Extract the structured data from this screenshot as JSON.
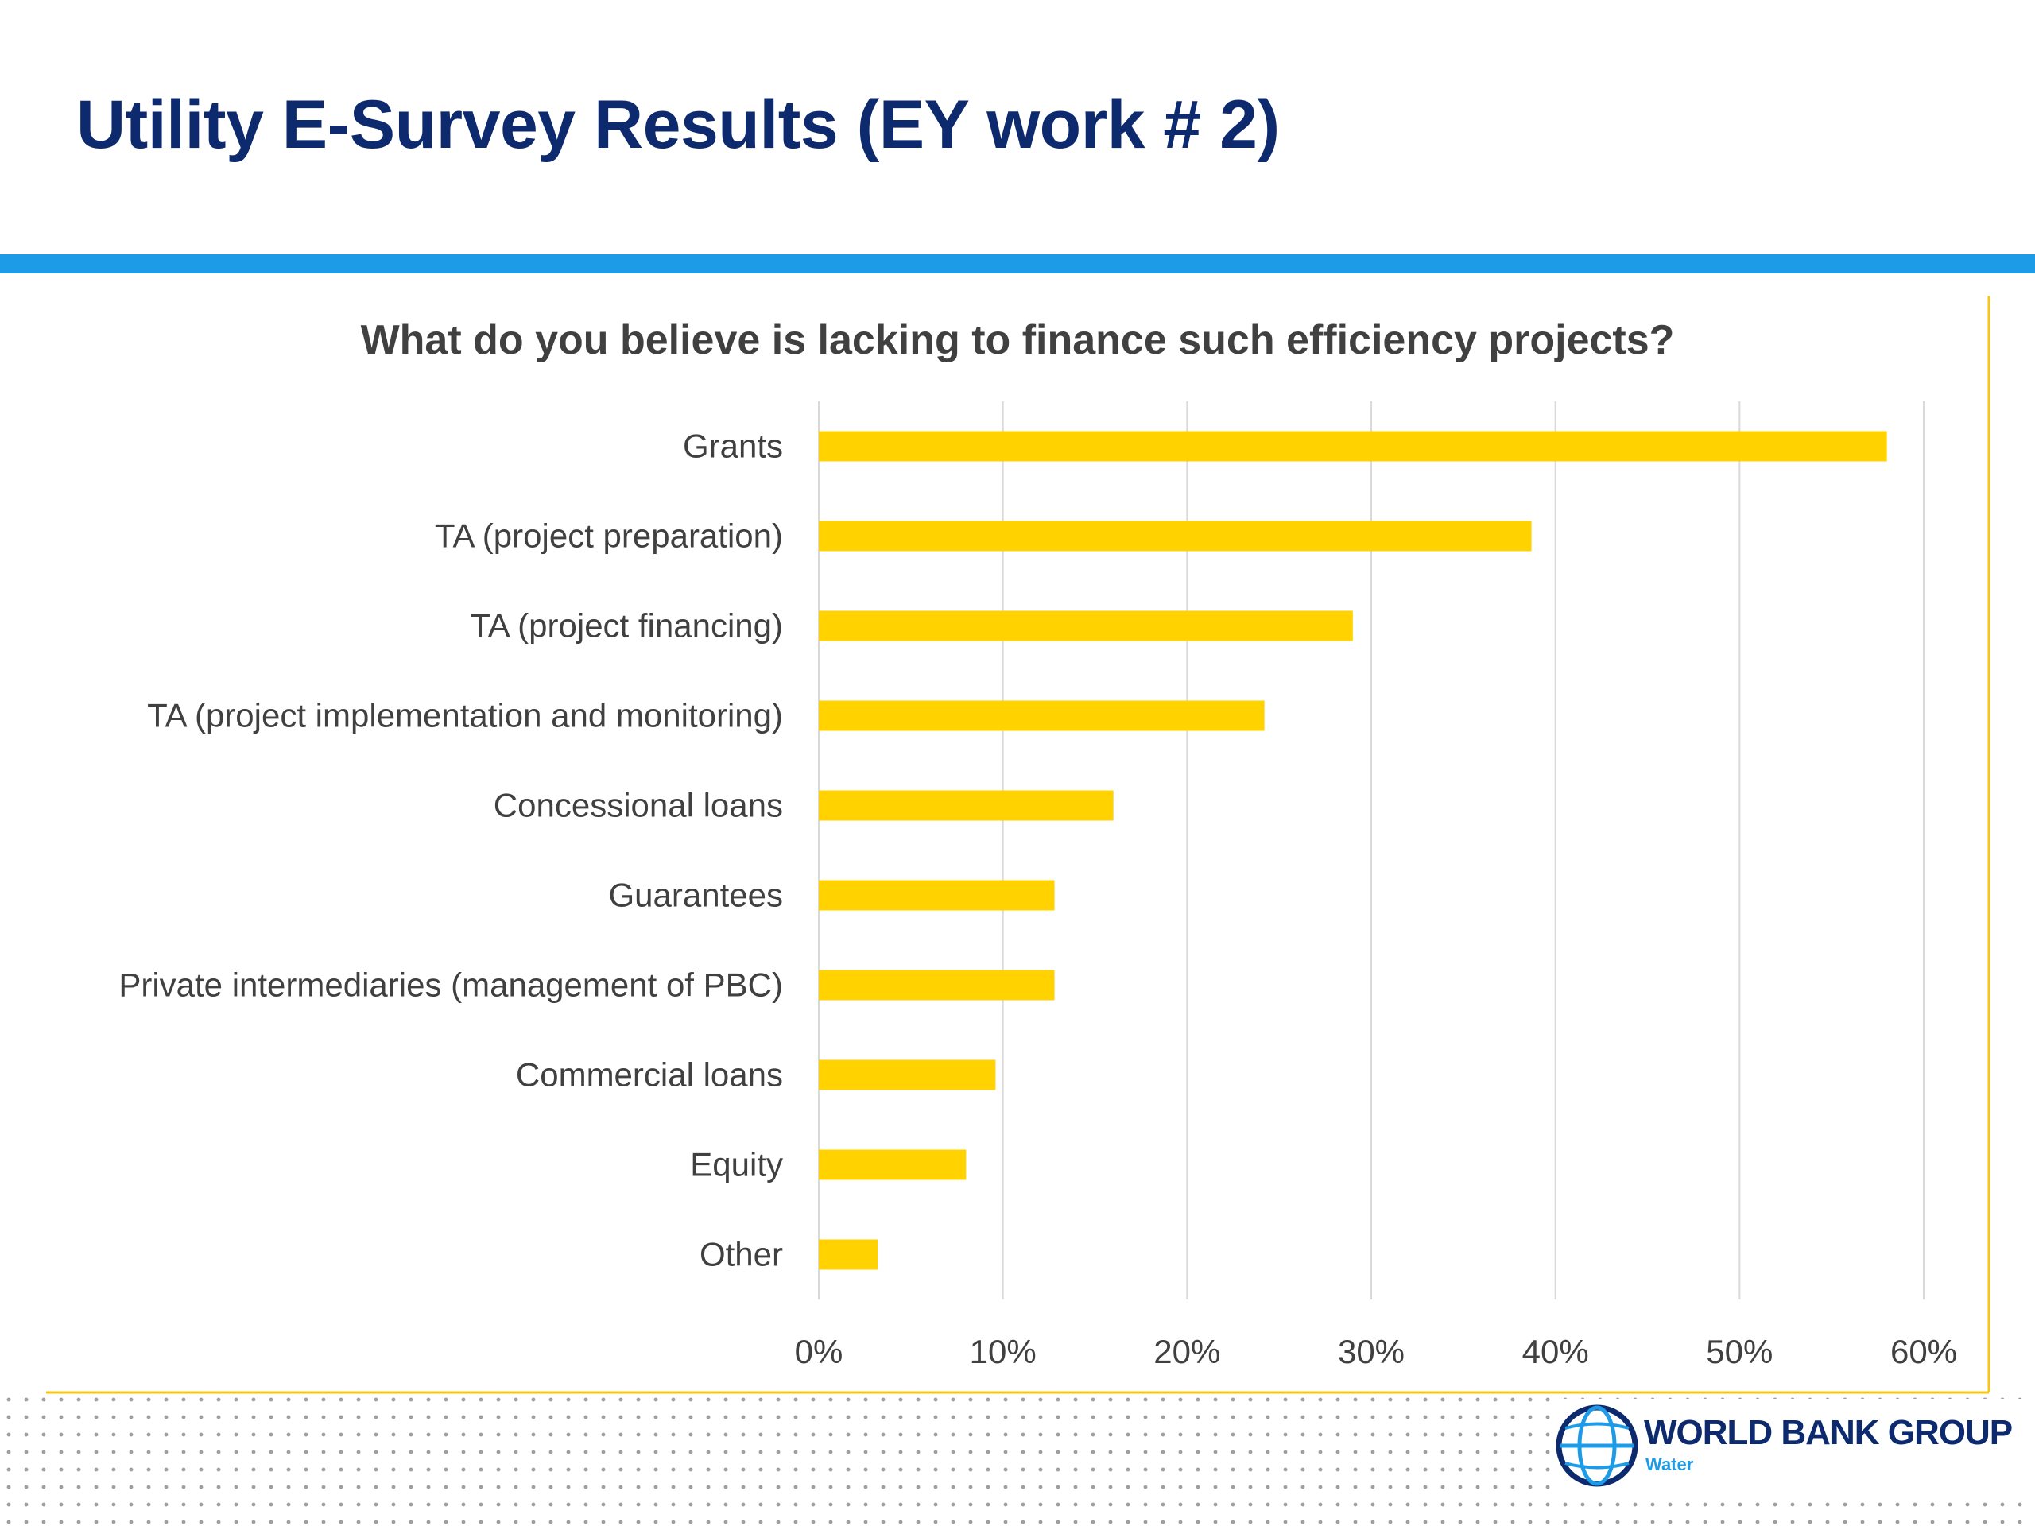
{
  "slide": {
    "title": "Utility E-Survey Results (EY work # 2)"
  },
  "colors": {
    "title": "#0d2a6e",
    "accent_bar": "#1e9be6",
    "bars": "#ffd200",
    "frame_line": "#f5c518",
    "grid": "#d9d9d9"
  },
  "chart_data": {
    "type": "bar",
    "orientation": "horizontal",
    "title": "What do you believe is lacking to finance such efficiency projects?",
    "categories": [
      "Grants",
      "TA (project preparation)",
      "TA (project financing)",
      "TA (project implementation and monitoring)",
      "Concessional loans",
      "Guarantees",
      "Private intermediaries (management of PBC)",
      "Commercial loans",
      "Equity",
      "Other"
    ],
    "values": [
      58,
      38.7,
      29,
      24.2,
      16,
      12.8,
      12.8,
      9.6,
      8,
      3.2
    ],
    "value_unit": "%",
    "xlim": [
      0,
      60
    ],
    "xticks": [
      "0%",
      "10%",
      "20%",
      "30%",
      "40%",
      "50%",
      "60%"
    ],
    "grid": true,
    "legend": "none"
  },
  "logo": {
    "name": "WORLD BANK GROUP",
    "sub": "Water"
  }
}
